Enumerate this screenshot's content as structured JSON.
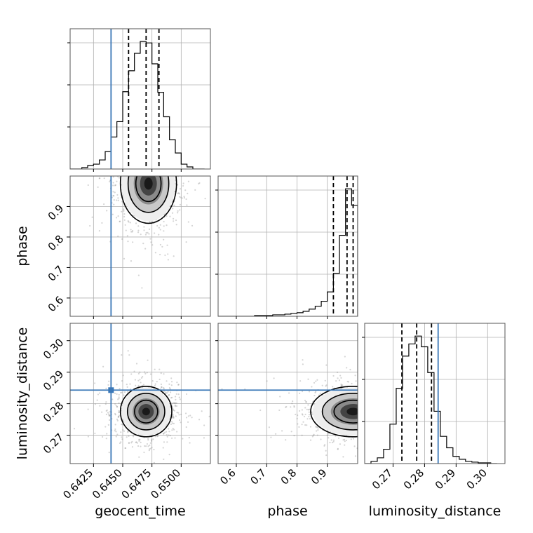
{
  "chart_data": {
    "type": "corner",
    "parameters": [
      {
        "name": "geocent_time",
        "label": "geocent_time",
        "range": [
          0.6405,
          0.6525
        ],
        "ticks": [
          0.6425,
          0.645,
          0.6475,
          0.65
        ],
        "tick_labels": [
          "0.6425",
          "0.6450",
          "0.6475",
          "0.6500"
        ],
        "truth": 0.644,
        "quantiles": [
          0.6455,
          0.647,
          0.6481
        ],
        "hist": {
          "edges": [
            0.6405,
            0.641,
            0.6415,
            0.642,
            0.6425,
            0.643,
            0.6435,
            0.644,
            0.6445,
            0.645,
            0.6455,
            0.646,
            0.6465,
            0.647,
            0.6475,
            0.648,
            0.6485,
            0.649,
            0.6495,
            0.65,
            0.6505,
            0.651,
            0.6515,
            0.652
          ],
          "counts": [
            0,
            0,
            2,
            5,
            7,
            13,
            25,
            46,
            68,
            111,
            141,
            166,
            183,
            181,
            151,
            110,
            75,
            42,
            23,
            7,
            3,
            0,
            0
          ]
        }
      },
      {
        "name": "phase",
        "label": "phase",
        "range": [
          0.54,
          1.0
        ],
        "ticks": [
          0.6,
          0.7,
          0.8,
          0.9
        ],
        "tick_labels": [
          "0.6",
          "0.7",
          "0.8",
          "0.9"
        ],
        "truth": null,
        "quantiles": [
          0.92,
          0.965,
          0.985
        ],
        "hist": {
          "edges": [
            0.54,
            0.56,
            0.58,
            0.6,
            0.62,
            0.64,
            0.66,
            0.68,
            0.7,
            0.72,
            0.74,
            0.76,
            0.78,
            0.8,
            0.82,
            0.84,
            0.86,
            0.88,
            0.9,
            0.92,
            0.94,
            0.96,
            0.98,
            1.0
          ],
          "counts": [
            0,
            0,
            0,
            0,
            0,
            0,
            1,
            1,
            1,
            2,
            2,
            3,
            4,
            5,
            7,
            10,
            14,
            21,
            34,
            60,
            113,
            178,
            155
          ]
        }
      },
      {
        "name": "luminosity_distance",
        "label": "luminosity_distance",
        "range": [
          0.261,
          0.3055
        ],
        "ticks": [
          0.27,
          0.28,
          0.29,
          0.3
        ],
        "tick_labels": [
          "0.27",
          "0.28",
          "0.29",
          "0.30"
        ],
        "truth": 0.2843,
        "quantiles": [
          0.2728,
          0.2775,
          0.2822
        ],
        "hist": {
          "edges": [
            0.261,
            0.263,
            0.265,
            0.267,
            0.269,
            0.271,
            0.273,
            0.275,
            0.277,
            0.279,
            0.281,
            0.283,
            0.285,
            0.287,
            0.289,
            0.291,
            0.293,
            0.295,
            0.297,
            0.299,
            0.301,
            0.303
          ],
          "counts": [
            0,
            3,
            8,
            20,
            55,
            105,
            150,
            167,
            178,
            163,
            127,
            73,
            38,
            22,
            10,
            6,
            3,
            2,
            1,
            1,
            0
          ]
        }
      }
    ],
    "joint": [
      {
        "x": "geocent_time",
        "y": "phase",
        "center": [
          0.6472,
          0.975
        ],
        "spread": [
          0.0012,
          0.065
        ]
      },
      {
        "x": "geocent_time",
        "y": "luminosity_distance",
        "center": [
          0.647,
          0.2775
        ],
        "spread": [
          0.0011,
          0.004
        ]
      },
      {
        "x": "phase",
        "y": "luminosity_distance",
        "center": [
          0.985,
          0.2775
        ],
        "spread": [
          0.07,
          0.004
        ]
      }
    ],
    "truth_color": "#3b78b8",
    "grid": true
  }
}
